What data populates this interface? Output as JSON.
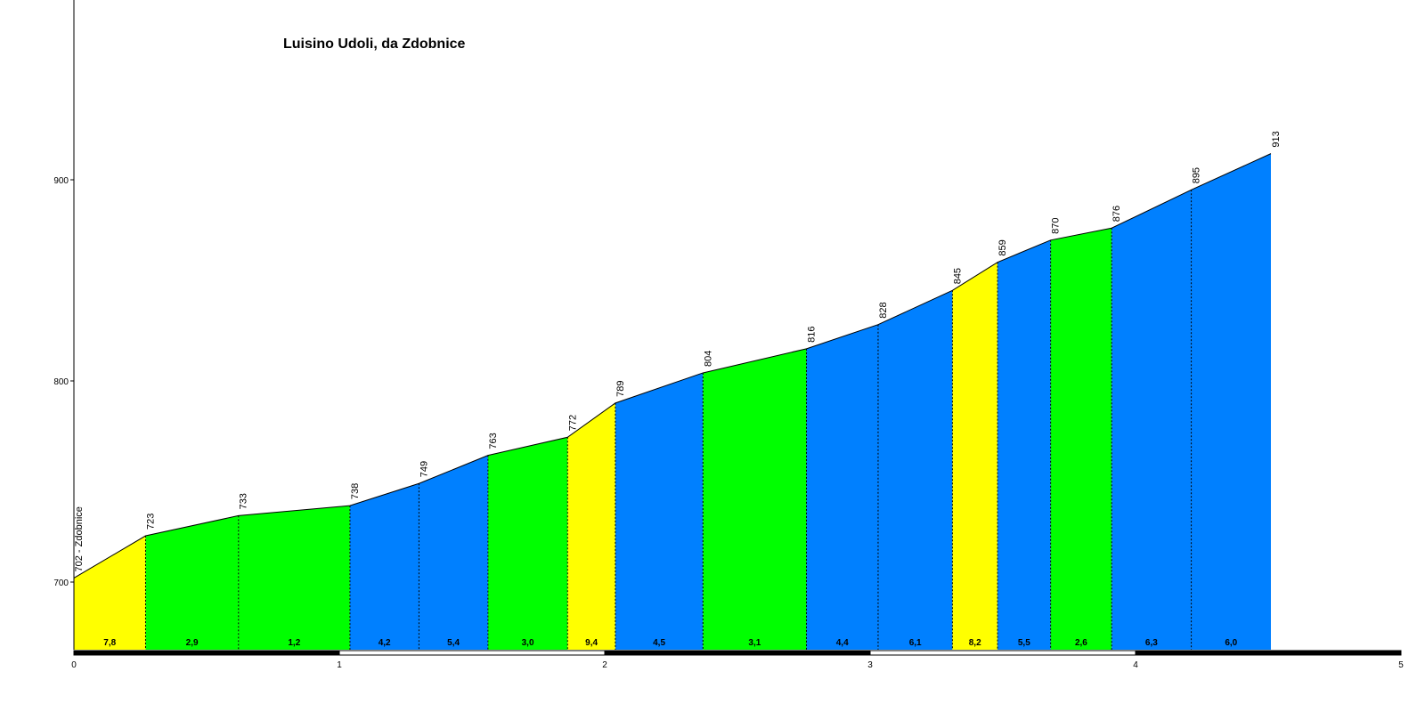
{
  "chart_data": {
    "type": "area",
    "title": "Luisino Udoli, da Zdobnice",
    "xlabel": "",
    "ylabel": "",
    "xlim": [
      0,
      5
    ],
    "ylim": [
      665,
      1000
    ],
    "x_ticks": [
      "0",
      "1",
      "2",
      "3",
      "4",
      "5"
    ],
    "y_ticks": [
      700,
      800,
      900
    ],
    "points": [
      {
        "x": 0.0,
        "y": 702,
        "label": "702 - Zdobnice"
      },
      {
        "x": 0.27,
        "y": 723,
        "label": "723"
      },
      {
        "x": 0.62,
        "y": 733,
        "label": "733"
      },
      {
        "x": 1.04,
        "y": 738,
        "label": "738"
      },
      {
        "x": 1.3,
        "y": 749,
        "label": "749"
      },
      {
        "x": 1.56,
        "y": 763,
        "label": "763"
      },
      {
        "x": 1.86,
        "y": 772,
        "label": "772"
      },
      {
        "x": 2.04,
        "y": 789,
        "label": "789"
      },
      {
        "x": 2.37,
        "y": 804,
        "label": "804"
      },
      {
        "x": 2.76,
        "y": 816,
        "label": "816"
      },
      {
        "x": 3.03,
        "y": 828,
        "label": "828"
      },
      {
        "x": 3.31,
        "y": 845,
        "label": "845"
      },
      {
        "x": 3.48,
        "y": 859,
        "label": "859"
      },
      {
        "x": 3.68,
        "y": 870,
        "label": "870"
      },
      {
        "x": 3.91,
        "y": 876,
        "label": "876"
      },
      {
        "x": 4.21,
        "y": 895,
        "label": "895"
      },
      {
        "x": 4.51,
        "y": 913,
        "label": "913"
      }
    ],
    "segments": [
      {
        "grade": "7,8",
        "color": "#ffff00"
      },
      {
        "grade": "2,9",
        "color": "#00ff00"
      },
      {
        "grade": "1,2",
        "color": "#00ff00"
      },
      {
        "grade": "4,2",
        "color": "#0080ff"
      },
      {
        "grade": "5,4",
        "color": "#0080ff"
      },
      {
        "grade": "3,0",
        "color": "#00ff00"
      },
      {
        "grade": "9,4",
        "color": "#ffff00"
      },
      {
        "grade": "4,5",
        "color": "#0080ff"
      },
      {
        "grade": "3,1",
        "color": "#00ff00"
      },
      {
        "grade": "4,4",
        "color": "#0080ff"
      },
      {
        "grade": "6,1",
        "color": "#0080ff"
      },
      {
        "grade": "8,2",
        "color": "#ffff00"
      },
      {
        "grade": "5,5",
        "color": "#0080ff"
      },
      {
        "grade": "2,6",
        "color": "#00ff00"
      },
      {
        "grade": "6,3",
        "color": "#0080ff"
      },
      {
        "grade": "6,0",
        "color": "#0080ff"
      }
    ],
    "grid": false,
    "legend": "none"
  }
}
